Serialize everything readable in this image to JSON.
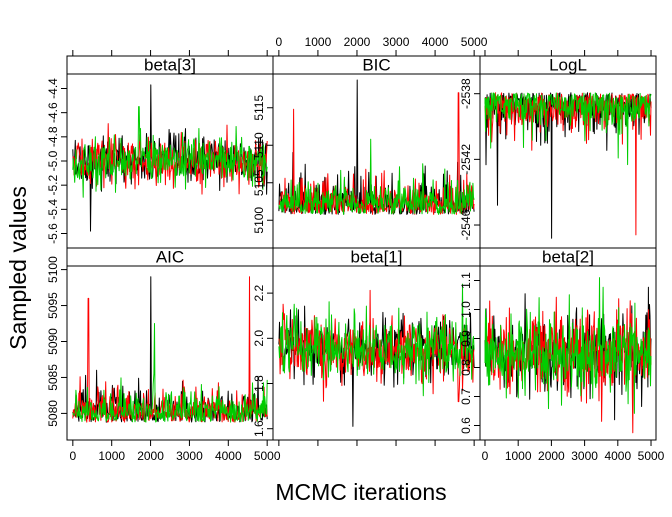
{
  "chart_data": {
    "type": "line",
    "layout": "3x2 trellis (lattice xyplot of MCMC traces)",
    "xlabel": "MCMC iterations",
    "ylabel": "Sampled values",
    "x_ticks": [
      0,
      1000,
      2000,
      3000,
      4000,
      5000
    ],
    "xlim": [
      -150,
      5150
    ],
    "iterations": 5000,
    "chains": [
      {
        "color": "#000000"
      },
      {
        "color": "#ff0000"
      },
      {
        "color": "#00cd00"
      }
    ],
    "panels": [
      {
        "title": "beta[3]",
        "ylim": [
          -5.72,
          -4.28
        ],
        "yticks": [
          -5.6,
          -5.4,
          -5.2,
          -5.0,
          -4.8,
          -4.6,
          -4.4
        ],
        "ytick_labels": [
          "-5.6",
          "-5.4",
          "-5.2",
          "-5.0",
          "-4.8",
          "-4.6",
          "-4.4"
        ],
        "center": -5.0,
        "spread": 0.1,
        "skew": 0,
        "floor": null,
        "ceiling": null,
        "spikes": [
          {
            "chain": 0,
            "x": 2000,
            "y": -4.37
          },
          {
            "chain": 2,
            "x": 1700,
            "y": -4.55
          },
          {
            "chain": 0,
            "x": 450,
            "y": -5.58
          }
        ]
      },
      {
        "title": "BIC",
        "ylim": [
          5096.3,
          5119.5
        ],
        "yticks": [
          5100,
          5105,
          5110,
          5115
        ],
        "ytick_labels": [
          "5100",
          "5105",
          "5110",
          "5115"
        ],
        "center": 5101.5,
        "spread": 1.8,
        "skew": 1,
        "floor": 5097.5,
        "ceiling": null,
        "spikes": [
          {
            "chain": 0,
            "x": 2000,
            "y": 5118.7
          },
          {
            "chain": 1,
            "x": 4600,
            "y": 5117.0
          },
          {
            "chain": 1,
            "x": 380,
            "y": 5114.8
          },
          {
            "chain": 2,
            "x": 2350,
            "y": 5110.8
          }
        ]
      },
      {
        "title": "LogL",
        "ylim": [
          -2547.4,
          -2536.8
        ],
        "yticks": [
          -2546,
          -2542,
          -2538
        ],
        "ytick_labels": [
          "-2546",
          "-2542",
          "-2538"
        ],
        "center": -2538.3,
        "spread": 0.9,
        "skew": -1,
        "floor": null,
        "ceiling": -2537.4,
        "spikes": [
          {
            "chain": 0,
            "x": 2000,
            "y": -2546.8
          },
          {
            "chain": 1,
            "x": 4550,
            "y": -2546.6
          },
          {
            "chain": 0,
            "x": 380,
            "y": -2544.8
          }
        ]
      },
      {
        "title": "AIC",
        "ylim": [
          5076.3,
          5100.5
        ],
        "yticks": [
          5080,
          5085,
          5090,
          5095,
          5100
        ],
        "ytick_labels": [
          "5080",
          "5085",
          "5090",
          "5095",
          "5100"
        ],
        "center": 5079.5,
        "spread": 1.8,
        "skew": 1,
        "floor": 5077.5,
        "ceiling": null,
        "spikes": [
          {
            "chain": 0,
            "x": 2000,
            "y": 5099.0
          },
          {
            "chain": 1,
            "x": 4550,
            "y": 5099.0
          },
          {
            "chain": 1,
            "x": 400,
            "y": 5096.0
          },
          {
            "chain": 2,
            "x": 2100,
            "y": 5092.5
          }
        ]
      },
      {
        "title": "beta[1]",
        "ylim": [
          1.55,
          2.32
        ],
        "yticks": [
          1.6,
          1.8,
          2.0,
          2.2
        ],
        "ytick_labels": [
          "1.6",
          "1.8",
          "2.0",
          "2.2"
        ],
        "center": 1.95,
        "spread": 0.07,
        "skew": 0,
        "floor": null,
        "ceiling": null,
        "spikes": [
          {
            "chain": 0,
            "x": 1900,
            "y": 1.61
          },
          {
            "chain": 1,
            "x": 4600,
            "y": 1.72
          },
          {
            "chain": 2,
            "x": 4700,
            "y": 2.24
          }
        ]
      },
      {
        "title": "beta[2]",
        "ylim": [
          0.55,
          1.15
        ],
        "yticks": [
          0.6,
          0.7,
          0.8,
          0.9,
          1.0,
          1.1
        ],
        "ytick_labels": [
          "0.6",
          "0.7",
          "0.8",
          "0.9",
          "1.0",
          "1.1"
        ],
        "center": 0.85,
        "spread": 0.07,
        "skew": 0,
        "floor": null,
        "ceiling": null,
        "spikes": [
          {
            "chain": 1,
            "x": 4450,
            "y": 0.575
          },
          {
            "chain": 2,
            "x": 3450,
            "y": 1.11
          },
          {
            "chain": 0,
            "x": 3900,
            "y": 0.62
          }
        ]
      }
    ]
  }
}
